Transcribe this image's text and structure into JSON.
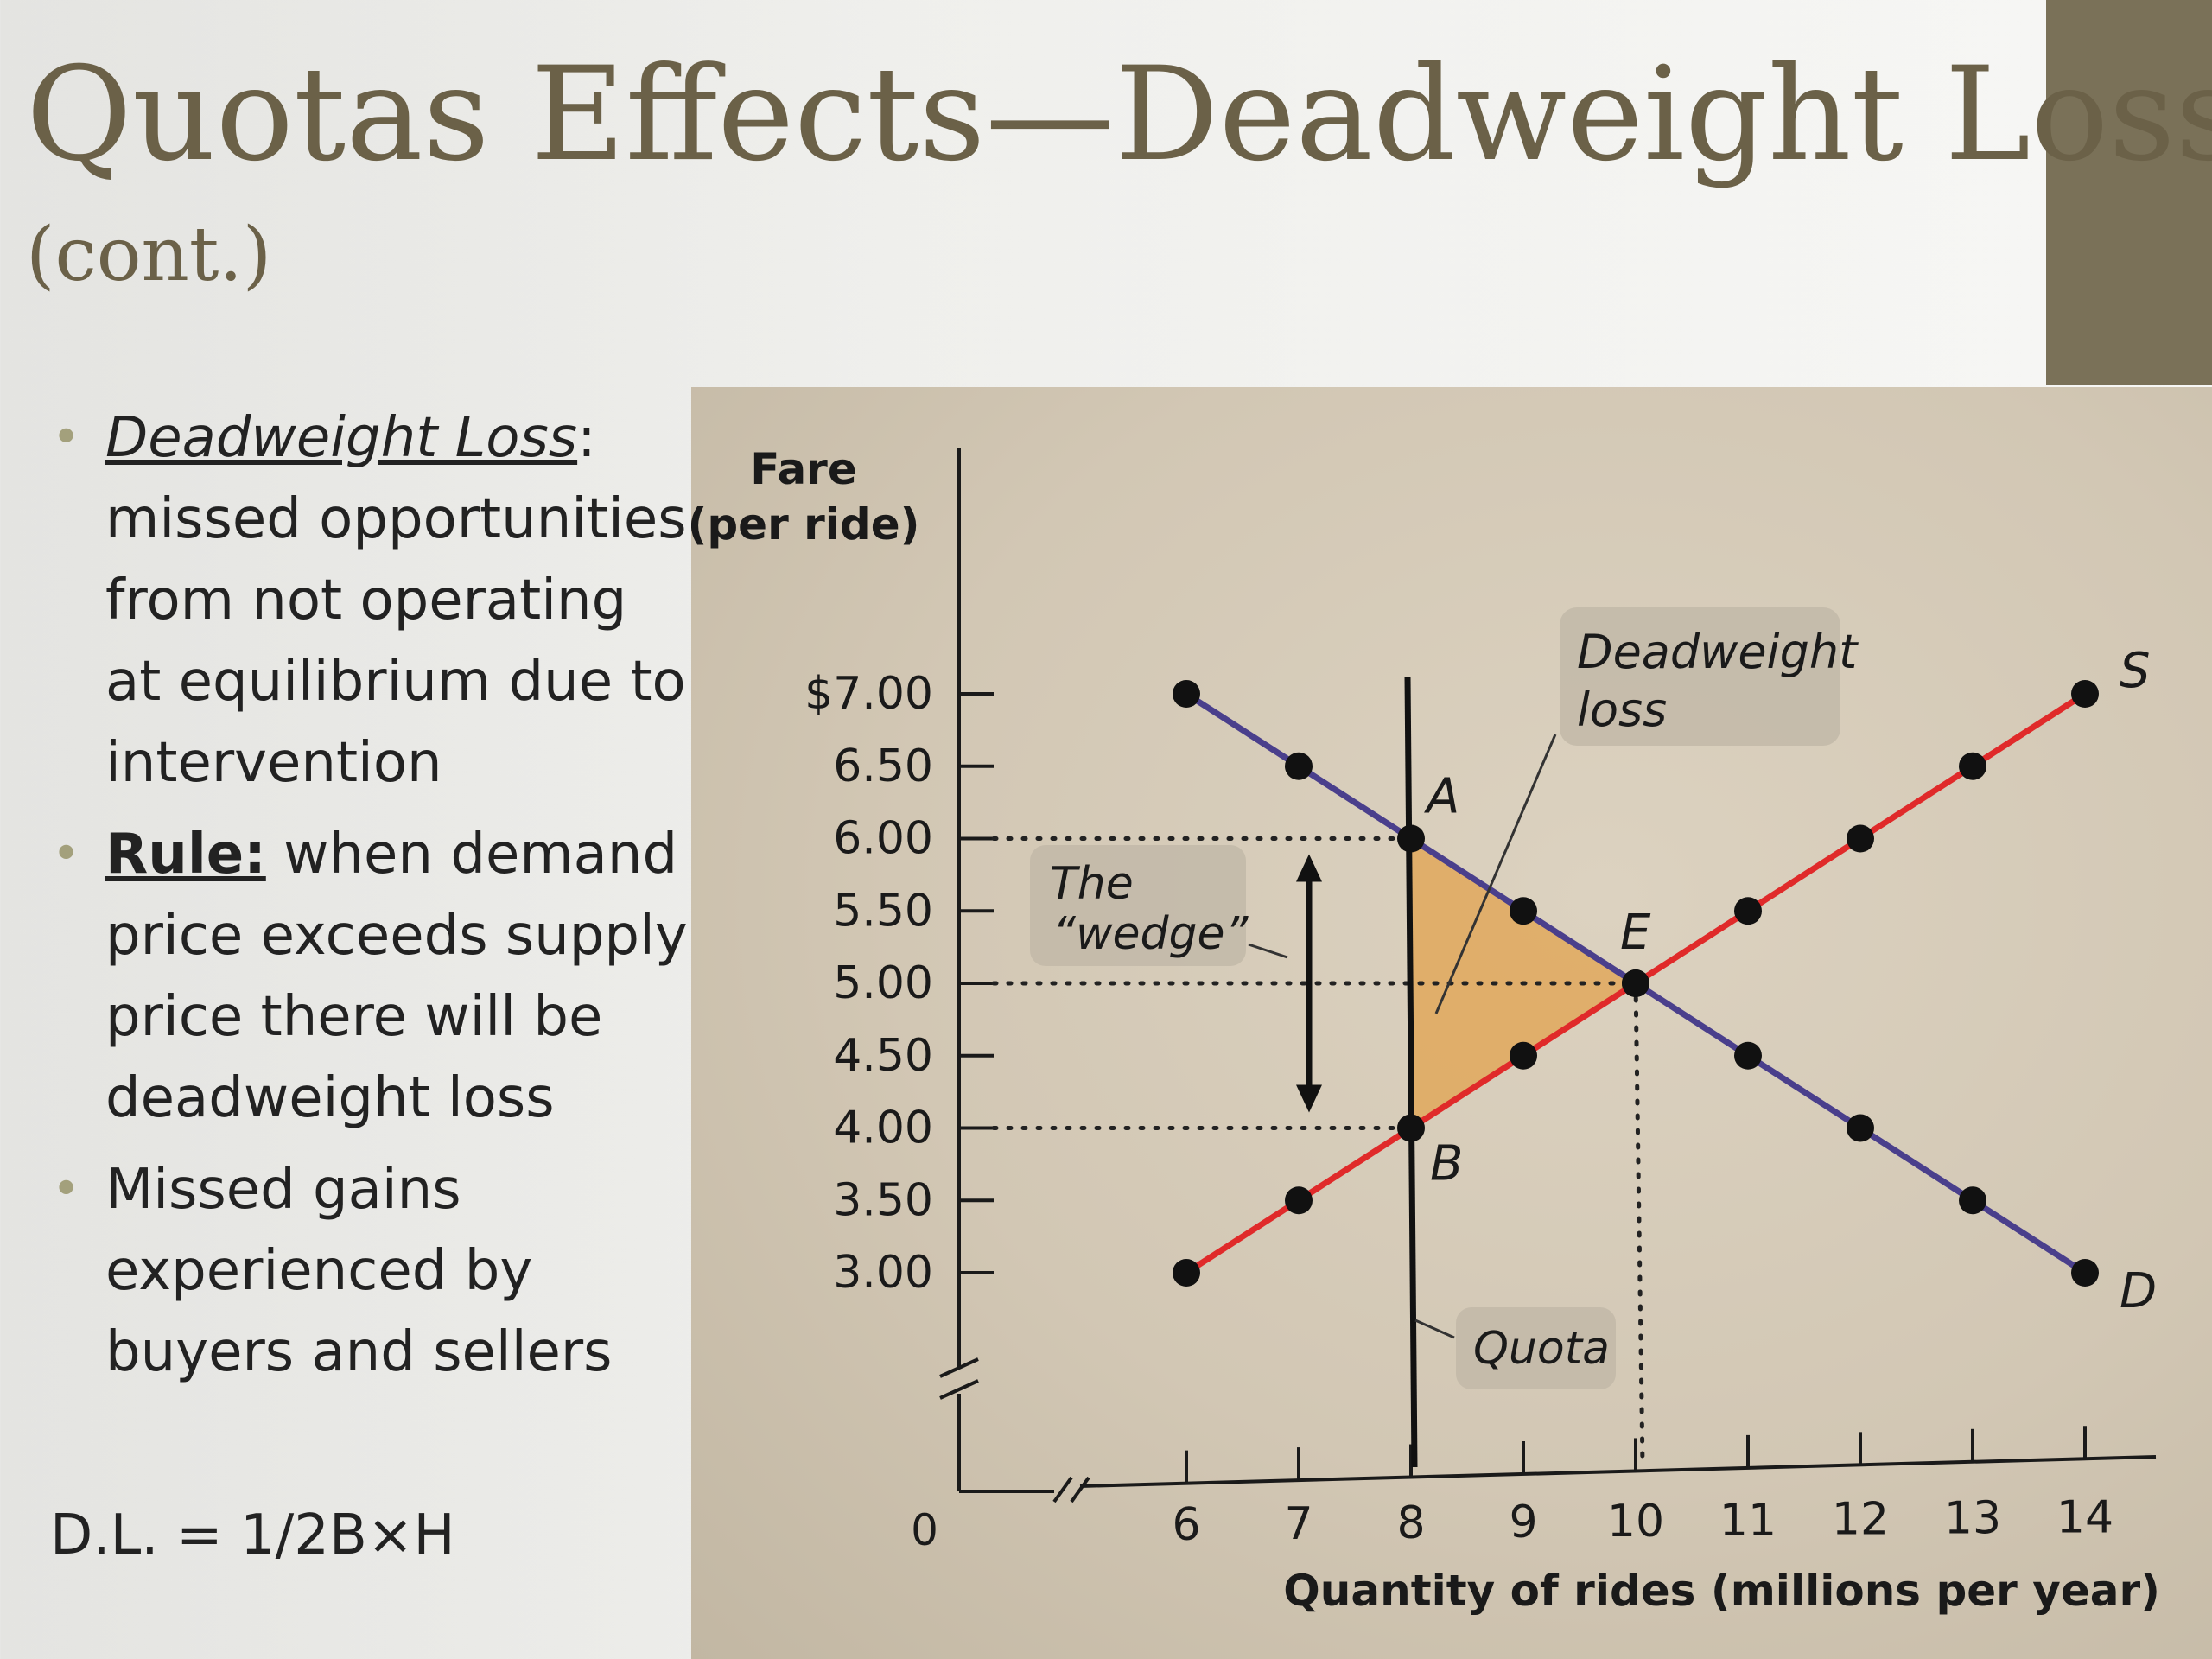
{
  "slide": {
    "title": "Quotas Effects—Deadweight Loss",
    "subtitle": "(cont.)",
    "accent_color": "#7a7158",
    "title_color": "#6b6148"
  },
  "bullets": {
    "b1_term": "Deadweight Loss",
    "b1_colon": ":",
    "b1_text": "missed opportunities from not operating at equilibrium due to intervention",
    "b2_term": "Rule:",
    "b2_text": "when demand price exceeds supply price there will be deadweight loss",
    "b3_text": "Missed gains experienced by buyers and sellers",
    "formula": "D.L. = 1/2B×H",
    "bullet_glyph": "•"
  },
  "chart_data": {
    "type": "line",
    "ylabel_line1": "Fare",
    "ylabel_line2": "(per ride)",
    "xlabel": "Quantity of rides (millions per year)",
    "origin_label": "0",
    "x_ticks": [
      6,
      7,
      8,
      9,
      10,
      11,
      12,
      13,
      14
    ],
    "y_ticks": [
      "$7.00",
      "6.50",
      "6.00",
      "5.50",
      "5.00",
      "4.50",
      "4.00",
      "3.50",
      "3.00"
    ],
    "y_tick_values": [
      7.0,
      6.5,
      6.0,
      5.5,
      5.0,
      4.5,
      4.0,
      3.5,
      3.0
    ],
    "xlim": [
      6,
      14
    ],
    "ylim": [
      3.0,
      7.0
    ],
    "axis_breaks": true,
    "series": [
      {
        "name": "D",
        "color": "#4a3f8c",
        "points": [
          [
            6,
            7.0
          ],
          [
            7,
            6.5
          ],
          [
            8,
            6.0
          ],
          [
            9,
            5.5
          ],
          [
            10,
            5.0
          ],
          [
            11,
            4.5
          ],
          [
            12,
            4.0
          ],
          [
            13,
            3.5
          ],
          [
            14,
            3.0
          ]
        ]
      },
      {
        "name": "S",
        "color": "#e02a2a",
        "points": [
          [
            6,
            3.0
          ],
          [
            7,
            3.5
          ],
          [
            8,
            4.0
          ],
          [
            9,
            4.5
          ],
          [
            10,
            5.0
          ],
          [
            11,
            5.5
          ],
          [
            12,
            6.0
          ],
          [
            13,
            6.5
          ],
          [
            14,
            7.0
          ]
        ]
      }
    ],
    "quota": {
      "label": "Quota",
      "x": 8
    },
    "points": {
      "A": {
        "label": "A",
        "x": 8,
        "y": 6.0
      },
      "B": {
        "label": "B",
        "x": 8,
        "y": 4.0
      },
      "E": {
        "label": "E",
        "x": 10,
        "y": 5.0
      }
    },
    "deadweight_loss": {
      "label_line1": "Deadweight",
      "label_line2": "loss",
      "color": "#e2a34f"
    },
    "wedge": {
      "label_line1": "The",
      "label_line2": "“wedge”",
      "from": 4.0,
      "to": 6.0
    },
    "guides": [
      6.0,
      5.0,
      4.0
    ]
  }
}
